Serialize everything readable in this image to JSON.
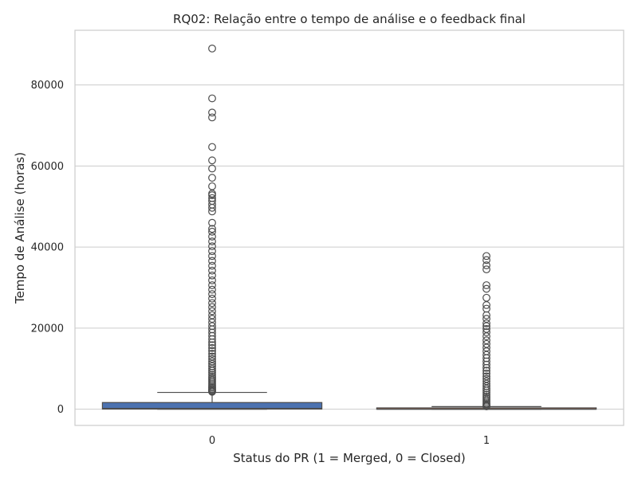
{
  "chart_data": {
    "type": "box",
    "title": "RQ02: Relação entre o tempo de análise e o feedback final",
    "xlabel": "Status do PR (1 = Merged, 0 = Closed)",
    "ylabel": "Tempo de Análise (horas)",
    "ylim": [
      -4000,
      93500
    ],
    "yticks": [
      0,
      20000,
      40000,
      60000,
      80000
    ],
    "grid": true,
    "categories": [
      "0",
      "1"
    ],
    "box_colors": [
      "#4c72b0",
      "#dd8452"
    ],
    "series": [
      {
        "category": "0",
        "whisker_low": 0,
        "q1": 30,
        "median": 180,
        "q3": 1650,
        "whisker_high": 4150,
        "outliers": [
          4300,
          4500,
          4700,
          5000,
          5300,
          5600,
          6000,
          6400,
          6800,
          7200,
          7600,
          8000,
          8500,
          9000,
          9500,
          10000,
          10600,
          11200,
          11800,
          12400,
          13000,
          13700,
          14400,
          15100,
          15800,
          16500,
          17300,
          18100,
          18900,
          19700,
          20500,
          21400,
          22300,
          23200,
          24200,
          25200,
          26200,
          27300,
          28400,
          29500,
          30600,
          31800,
          33000,
          34200,
          35400,
          36600,
          37800,
          39000,
          40200,
          41400,
          42600,
          43800,
          44500,
          46000,
          48800,
          49700,
          50500,
          51400,
          52100,
          52800,
          53200,
          55000,
          57100,
          59400,
          61400,
          64700,
          72000,
          73200,
          76700,
          89000
        ]
      },
      {
        "category": "1",
        "whisker_low": 0,
        "q1": 5,
        "median": 30,
        "q3": 330,
        "whisker_high": 650,
        "outliers": [
          700,
          900,
          1200,
          1500,
          1900,
          2300,
          2700,
          3100,
          3600,
          4100,
          4600,
          5100,
          5700,
          6300,
          6900,
          7500,
          8100,
          8800,
          9500,
          10200,
          11000,
          11800,
          12600,
          13400,
          14300,
          15200,
          16100,
          17000,
          18000,
          19000,
          19800,
          20500,
          21200,
          22300,
          23200,
          24800,
          25700,
          27500,
          29700,
          30600,
          34500,
          35500,
          36800,
          37800
        ]
      }
    ]
  }
}
